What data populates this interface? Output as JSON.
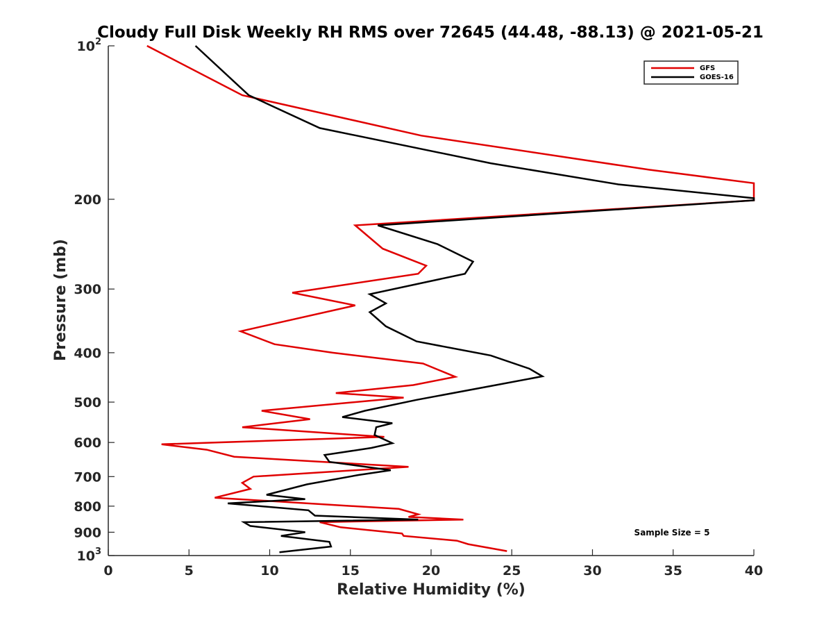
{
  "chart_data": {
    "type": "line",
    "title": "Cloudy Full Disk Weekly RH RMS over 72645 (44.48, -88.13) @ 2021-05-21",
    "xlabel": "Relative Humidity (%)",
    "ylabel": "Pressure (mb)",
    "xlim": [
      0,
      40
    ],
    "ylim": [
      100,
      1000
    ],
    "y_scale": "log",
    "y_reversed": true,
    "x_ticks": [
      "0",
      "5",
      "10",
      "15",
      "20",
      "25",
      "30",
      "35",
      "40"
    ],
    "y_ticks": [
      {
        "value": 100,
        "label": "10",
        "sup": "2"
      },
      {
        "value": 200,
        "label": "200",
        "sup": ""
      },
      {
        "value": 300,
        "label": "300",
        "sup": ""
      },
      {
        "value": 400,
        "label": "400",
        "sup": ""
      },
      {
        "value": 500,
        "label": "500",
        "sup": ""
      },
      {
        "value": 600,
        "label": "600",
        "sup": ""
      },
      {
        "value": 700,
        "label": "700",
        "sup": ""
      },
      {
        "value": 800,
        "label": "800",
        "sup": ""
      },
      {
        "value": 900,
        "label": "900",
        "sup": ""
      },
      {
        "value": 1000,
        "label": "10",
        "sup": "3"
      }
    ],
    "grid": false,
    "legend_position": "top-right",
    "annotation": "Sample Size = 5",
    "series": [
      {
        "name": "GFS",
        "color": "#e00000",
        "points": [
          [
            2.4,
            100
          ],
          [
            8.3,
            125
          ],
          [
            19.4,
            150
          ],
          [
            33.5,
            175
          ],
          [
            40,
            186
          ],
          [
            40,
            201
          ],
          [
            15.3,
            225
          ],
          [
            17.0,
            250
          ],
          [
            19.7,
            270
          ],
          [
            19.2,
            280
          ],
          [
            11.4,
            305
          ],
          [
            15.3,
            323
          ],
          [
            8.2,
            363
          ],
          [
            10.3,
            385
          ],
          [
            13.9,
            400
          ],
          [
            19.5,
            420
          ],
          [
            21.5,
            446
          ],
          [
            18.9,
            463
          ],
          [
            14.1,
            480
          ],
          [
            18.3,
            490
          ],
          [
            9.5,
            520
          ],
          [
            12.5,
            540
          ],
          [
            8.3,
            560
          ],
          [
            17.1,
            585
          ],
          [
            3.3,
            605
          ],
          [
            6.1,
            620
          ],
          [
            7.8,
            640
          ],
          [
            18.6,
            670
          ],
          [
            9.0,
            700
          ],
          [
            8.3,
            720
          ],
          [
            8.8,
            740
          ],
          [
            6.6,
            770
          ],
          [
            18.0,
            810
          ],
          [
            19.2,
            830
          ],
          [
            18.6,
            840
          ],
          [
            22.0,
            850
          ],
          [
            13.1,
            860
          ],
          [
            14.4,
            880
          ],
          [
            18.2,
            905
          ],
          [
            18.3,
            915
          ],
          [
            21.6,
            935
          ],
          [
            22.3,
            950
          ],
          [
            24.7,
            980
          ]
        ]
      },
      {
        "name": "GOES-16",
        "color": "#000000",
        "points": [
          [
            5.4,
            100
          ],
          [
            8.7,
            125
          ],
          [
            13.1,
            145
          ],
          [
            23.7,
            170
          ],
          [
            31.6,
            187
          ],
          [
            40,
            199
          ],
          [
            40,
            201
          ],
          [
            16.7,
            225
          ],
          [
            20.4,
            245
          ],
          [
            22.6,
            265
          ],
          [
            22.1,
            280
          ],
          [
            16.2,
            307
          ],
          [
            17.2,
            320
          ],
          [
            16.2,
            333
          ],
          [
            17.2,
            355
          ],
          [
            19.1,
            380
          ],
          [
            23.7,
            405
          ],
          [
            26.1,
            430
          ],
          [
            26.9,
            445
          ],
          [
            23.7,
            465
          ],
          [
            19.1,
            495
          ],
          [
            15.9,
            520
          ],
          [
            14.5,
            535
          ],
          [
            17.6,
            550
          ],
          [
            16.6,
            560
          ],
          [
            16.5,
            580
          ],
          [
            17.6,
            602
          ],
          [
            16.3,
            615
          ],
          [
            13.4,
            635
          ],
          [
            13.7,
            655
          ],
          [
            17.5,
            680
          ],
          [
            15.5,
            695
          ],
          [
            12.3,
            725
          ],
          [
            9.8,
            760
          ],
          [
            12.2,
            775
          ],
          [
            7.4,
            790
          ],
          [
            12.4,
            815
          ],
          [
            12.8,
            835
          ],
          [
            19.2,
            850
          ],
          [
            8.4,
            860
          ],
          [
            8.8,
            875
          ],
          [
            12.2,
            900
          ],
          [
            10.7,
            915
          ],
          [
            13.7,
            940
          ],
          [
            13.8,
            960
          ],
          [
            10.6,
            985
          ]
        ]
      }
    ]
  }
}
